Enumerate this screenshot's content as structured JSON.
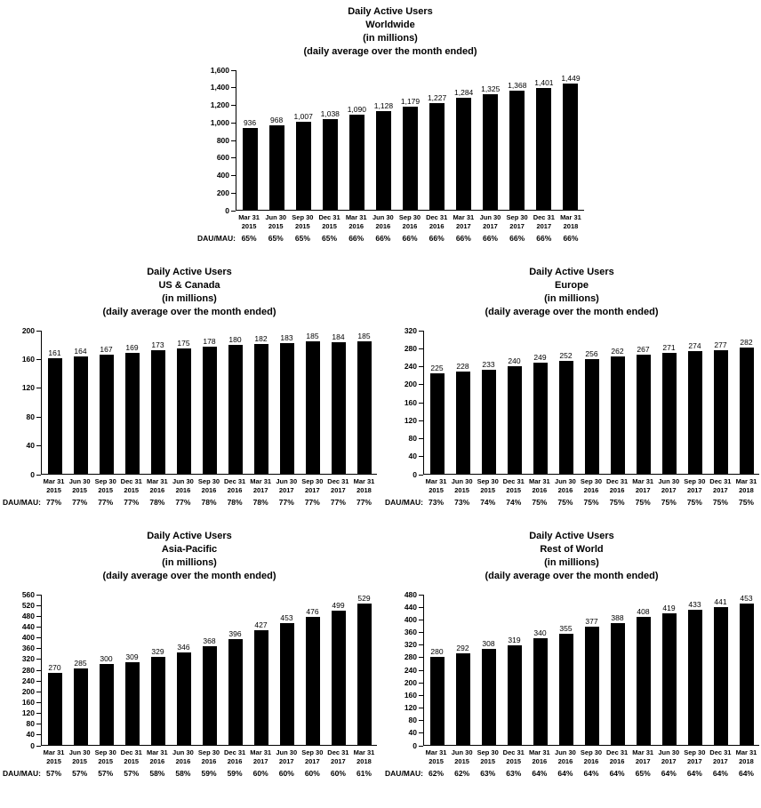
{
  "labels": {
    "dau_mau": "DAU/MAU:"
  },
  "colors": {
    "background": "#ffffff",
    "bar": "#000000",
    "axis": "#000000",
    "text": "#000000"
  },
  "chart_data": [
    {
      "id": "worldwide",
      "type": "bar",
      "title_lines": [
        "Daily Active Users",
        "Worldwide",
        "(in millions)",
        "(daily average over the month ended)"
      ],
      "xlabel": "",
      "ylabel": "",
      "grid": false,
      "legend": "none",
      "ylim": [
        0,
        1600
      ],
      "categories": [
        "Mar 31 2015",
        "Jun 30 2015",
        "Sep 30 2015",
        "Dec 31 2015",
        "Mar 31 2016",
        "Jun 30 2016",
        "Sep 30 2016",
        "Dec 31 2016",
        "Mar 31 2017",
        "Jun 30 2017",
        "Sep 30 2017",
        "Dec 31 2017",
        "Mar 31 2018"
      ],
      "values": [
        936,
        968,
        1007,
        1038,
        1090,
        1128,
        1179,
        1227,
        1284,
        1325,
        1368,
        1401,
        1449
      ],
      "value_labels": [
        "936",
        "968",
        "1,007",
        "1,038",
        "1,090",
        "1,128",
        "1,179",
        "1,227",
        "1,284",
        "1,325",
        "1,368",
        "1,401",
        "1,449"
      ],
      "dau_mau": [
        "65%",
        "65%",
        "65%",
        "65%",
        "66%",
        "66%",
        "66%",
        "66%",
        "66%",
        "66%",
        "66%",
        "66%",
        "66%"
      ],
      "ytick_values": [
        0,
        200,
        400,
        600,
        800,
        1000,
        1200,
        1400,
        1600
      ],
      "ytick_labels": [
        "0",
        "200",
        "400",
        "600",
        "800",
        "1,000",
        "1,200",
        "1,400",
        "1,600"
      ]
    },
    {
      "id": "us-canada",
      "type": "bar",
      "title_lines": [
        "Daily Active Users",
        "US & Canada",
        "(in millions)",
        "(daily average over the month ended)"
      ],
      "xlabel": "",
      "ylabel": "",
      "grid": false,
      "legend": "none",
      "ylim": [
        0,
        200
      ],
      "categories": [
        "Mar 31 2015",
        "Jun 30 2015",
        "Sep 30 2015",
        "Dec 31 2015",
        "Mar 31 2016",
        "Jun 30 2016",
        "Sep 30 2016",
        "Dec 31 2016",
        "Mar 31 2017",
        "Jun 30 2017",
        "Sep 30 2017",
        "Dec 31 2017",
        "Mar 31 2018"
      ],
      "values": [
        161,
        164,
        167,
        169,
        173,
        175,
        178,
        180,
        182,
        183,
        185,
        184,
        185
      ],
      "value_labels": [
        "161",
        "164",
        "167",
        "169",
        "173",
        "175",
        "178",
        "180",
        "182",
        "183",
        "185",
        "184",
        "185"
      ],
      "dau_mau": [
        "77%",
        "77%",
        "77%",
        "77%",
        "78%",
        "77%",
        "78%",
        "78%",
        "78%",
        "77%",
        "77%",
        "77%",
        "77%"
      ],
      "ytick_values": [
        0,
        40,
        80,
        120,
        160,
        200
      ],
      "ytick_labels": [
        "0",
        "40",
        "80",
        "120",
        "160",
        "200"
      ]
    },
    {
      "id": "europe",
      "type": "bar",
      "title_lines": [
        "Daily Active Users",
        "Europe",
        "(in millions)",
        "(daily average over the month ended)"
      ],
      "xlabel": "",
      "ylabel": "",
      "grid": false,
      "legend": "none",
      "ylim": [
        0,
        320
      ],
      "categories": [
        "Mar 31 2015",
        "Jun 30 2015",
        "Sep 30 2015",
        "Dec 31 2015",
        "Mar 31 2016",
        "Jun 30 2016",
        "Sep 30 2016",
        "Dec 31 2016",
        "Mar 31 2017",
        "Jun 30 2017",
        "Sep 30 2017",
        "Dec 31 2017",
        "Mar 31 2018"
      ],
      "values": [
        225,
        228,
        233,
        240,
        249,
        252,
        256,
        262,
        267,
        271,
        274,
        277,
        282
      ],
      "value_labels": [
        "225",
        "228",
        "233",
        "240",
        "249",
        "252",
        "256",
        "262",
        "267",
        "271",
        "274",
        "277",
        "282"
      ],
      "dau_mau": [
        "73%",
        "73%",
        "74%",
        "74%",
        "75%",
        "75%",
        "75%",
        "75%",
        "75%",
        "75%",
        "75%",
        "75%",
        "75%"
      ],
      "ytick_values": [
        0,
        40,
        80,
        120,
        160,
        200,
        240,
        280,
        320
      ],
      "ytick_labels": [
        "0",
        "40",
        "80",
        "120",
        "160",
        "200",
        "240",
        "280",
        "320"
      ]
    },
    {
      "id": "asia-pacific",
      "type": "bar",
      "title_lines": [
        "Daily Active Users",
        "Asia-Pacific",
        "(in millions)",
        "(daily average over the month ended)"
      ],
      "xlabel": "",
      "ylabel": "",
      "grid": false,
      "legend": "none",
      "ylim": [
        0,
        560
      ],
      "categories": [
        "Mar 31 2015",
        "Jun 30 2015",
        "Sep 30 2015",
        "Dec 31 2015",
        "Mar 31 2016",
        "Jun 30 2016",
        "Sep 30 2016",
        "Dec 31 2016",
        "Mar 31 2017",
        "Jun 30 2017",
        "Sep 30 2017",
        "Dec 31 2017",
        "Mar 31 2018"
      ],
      "values": [
        270,
        285,
        300,
        309,
        329,
        346,
        368,
        396,
        427,
        453,
        476,
        499,
        529
      ],
      "value_labels": [
        "270",
        "285",
        "300",
        "309",
        "329",
        "346",
        "368",
        "396",
        "427",
        "453",
        "476",
        "499",
        "529"
      ],
      "dau_mau": [
        "57%",
        "57%",
        "57%",
        "57%",
        "58%",
        "58%",
        "59%",
        "59%",
        "60%",
        "60%",
        "60%",
        "60%",
        "61%"
      ],
      "ytick_values": [
        0,
        40,
        80,
        120,
        160,
        200,
        240,
        280,
        320,
        360,
        400,
        440,
        480,
        520,
        560
      ],
      "ytick_labels": [
        "0",
        "40",
        "80",
        "120",
        "160",
        "200",
        "240",
        "280",
        "320",
        "360",
        "400",
        "440",
        "480",
        "520",
        "560"
      ]
    },
    {
      "id": "rest-of-world",
      "type": "bar",
      "title_lines": [
        "Daily Active Users",
        "Rest of World",
        "(in millions)",
        "(daily average over the month ended)"
      ],
      "xlabel": "",
      "ylabel": "",
      "grid": false,
      "legend": "none",
      "ylim": [
        0,
        480
      ],
      "categories": [
        "Mar 31 2015",
        "Jun 30 2015",
        "Sep 30 2015",
        "Dec 31 2015",
        "Mar 31 2016",
        "Jun 30 2016",
        "Sep 30 2016",
        "Dec 31 2016",
        "Mar 31 2017",
        "Jun 30 2017",
        "Sep 30 2017",
        "Dec 31 2017",
        "Mar 31 2018"
      ],
      "values": [
        280,
        292,
        308,
        319,
        340,
        355,
        377,
        388,
        408,
        419,
        433,
        441,
        453
      ],
      "value_labels": [
        "280",
        "292",
        "308",
        "319",
        "340",
        "355",
        "377",
        "388",
        "408",
        "419",
        "433",
        "441",
        "453"
      ],
      "dau_mau": [
        "62%",
        "62%",
        "63%",
        "63%",
        "64%",
        "64%",
        "64%",
        "64%",
        "65%",
        "64%",
        "64%",
        "64%",
        "64%"
      ],
      "ytick_values": [
        0,
        40,
        80,
        120,
        160,
        200,
        240,
        280,
        320,
        360,
        400,
        440,
        480
      ],
      "ytick_labels": [
        "0",
        "40",
        "80",
        "120",
        "160",
        "200",
        "240",
        "280",
        "320",
        "360",
        "400",
        "440",
        "480"
      ]
    }
  ]
}
